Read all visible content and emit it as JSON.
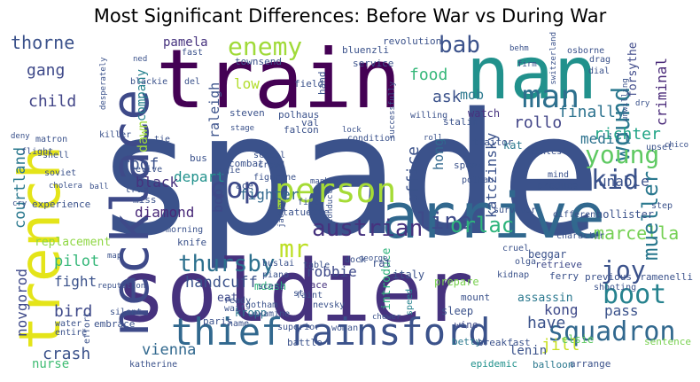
{
  "title": "Most Significant Differences: Before War vs During War",
  "words": [
    {
      "text": "spade",
      "color": "#3b528b"
    },
    {
      "text": "soldier",
      "color": "#46327e"
    },
    {
      "text": "train",
      "color": "#440154"
    },
    {
      "text": "nan",
      "color": "#21918c"
    },
    {
      "text": "trench",
      "color": "#e4e419"
    },
    {
      "text": "necklace",
      "color": "#3e4a89"
    },
    {
      "text": "arrive",
      "color": "#31688e"
    },
    {
      "text": "rainsford",
      "color": "#3b528b"
    },
    {
      "text": "thief",
      "color": "#31688e"
    },
    {
      "text": "person",
      "color": "#a5db36"
    },
    {
      "text": "man",
      "color": "#2d708e"
    },
    {
      "text": "enemy",
      "color": "#a0da39"
    },
    {
      "text": "line",
      "color": "#3e4a89"
    },
    {
      "text": "squadron",
      "color": "#31688e"
    },
    {
      "text": "boot",
      "color": "#26828e"
    },
    {
      "text": "joy",
      "color": "#3b528b"
    },
    {
      "text": "cop",
      "color": "#3e4989"
    },
    {
      "text": "mr",
      "color": "#bddf26"
    },
    {
      "text": "austrian",
      "color": "#46327e"
    },
    {
      "text": "wound",
      "color": "#2a788e"
    },
    {
      "text": "kid",
      "color": "#3b528b"
    },
    {
      "text": "young",
      "color": "#5ec962"
    },
    {
      "text": "orlac",
      "color": "#2fb47c"
    },
    {
      "text": "bab",
      "color": "#3b528b"
    },
    {
      "text": "thursby",
      "color": "#2d708e"
    },
    {
      "text": "marcella",
      "color": "#75d054"
    },
    {
      "text": "mueller",
      "color": "#2a788e"
    },
    {
      "text": "thorne",
      "color": "#3b528b"
    },
    {
      "text": "gang",
      "color": "#3e4989"
    },
    {
      "text": "child",
      "color": "#414487"
    },
    {
      "text": "food",
      "color": "#35b779"
    },
    {
      "text": "ask",
      "color": "#3b528b"
    },
    {
      "text": "rollo",
      "color": "#414487"
    },
    {
      "text": "finally",
      "color": "#2c728e"
    },
    {
      "text": "richter",
      "color": "#20a486"
    },
    {
      "text": "medill",
      "color": "#2c728e"
    },
    {
      "text": "unable",
      "color": "#3b528b"
    },
    {
      "text": "criminal",
      "color": "#482878"
    },
    {
      "text": "forsythe",
      "color": "#3e4989"
    },
    {
      "text": "katczinsky",
      "color": "#3b528b"
    },
    {
      "text": "office",
      "color": "#3b528b"
    },
    {
      "text": "hong",
      "color": "#31688e"
    },
    {
      "text": "mob",
      "color": "#2a788e"
    },
    {
      "text": "watch",
      "color": "#46327e"
    },
    {
      "text": "kat",
      "color": "#2a788e"
    },
    {
      "text": "fighter",
      "color": "#31688e"
    },
    {
      "text": "depart",
      "color": "#21918c"
    },
    {
      "text": "black",
      "color": "#46327e"
    },
    {
      "text": "roof",
      "color": "#3b528b"
    },
    {
      "text": "diamond",
      "color": "#482878"
    },
    {
      "text": "bob",
      "color": "#3e4989"
    },
    {
      "text": "dawn",
      "color": "#9fda3a"
    },
    {
      "text": "courtland",
      "color": "#2a788e"
    },
    {
      "text": "raleigh",
      "color": "#3b528b"
    },
    {
      "text": "company",
      "color": "#26828e"
    },
    {
      "text": "low",
      "color": "#b2dd2d"
    },
    {
      "text": "pamela",
      "color": "#46327e"
    },
    {
      "text": "handcuff",
      "color": "#3b528b"
    },
    {
      "text": "robbie",
      "color": "#3e4989"
    },
    {
      "text": "pilot",
      "color": "#35b779"
    },
    {
      "text": "fight",
      "color": "#3b528b"
    },
    {
      "text": "bird",
      "color": "#3e4989"
    },
    {
      "text": "crash",
      "color": "#3b528b"
    },
    {
      "text": "nurse",
      "color": "#3fbc73"
    },
    {
      "text": "vienna",
      "color": "#31688e"
    },
    {
      "text": "novgorod",
      "color": "#3e4989"
    },
    {
      "text": "replacement",
      "color": "#8fd744"
    },
    {
      "text": "introduce",
      "color": "#2fb47c"
    },
    {
      "text": "have",
      "color": "#3b528b"
    },
    {
      "text": "kong",
      "color": "#3e4989"
    },
    {
      "text": "jill",
      "color": "#c8e020"
    },
    {
      "text": "lenin",
      "color": "#3b528b"
    },
    {
      "text": "pass",
      "color": "#3b528b"
    },
    {
      "text": "assassin",
      "color": "#2a788e"
    },
    {
      "text": "hollister",
      "color": "#3b528b"
    },
    {
      "text": "beggar",
      "color": "#3b528b"
    },
    {
      "text": "retrieve",
      "color": "#3e4989"
    },
    {
      "text": "ramenelli",
      "color": "#3b528b"
    },
    {
      "text": "elsie",
      "color": "#5ec962"
    },
    {
      "text": "sentence",
      "color": "#7ad151"
    },
    {
      "text": "epidemic",
      "color": "#21918c"
    },
    {
      "text": "arrange",
      "color": "#3b528b"
    },
    {
      "text": "balloon",
      "color": "#2a788e"
    },
    {
      "text": "katherine",
      "color": "#3b528b"
    },
    {
      "text": "embrace",
      "color": "#3b528b"
    },
    {
      "text": "kropp",
      "color": "#2a788e"
    },
    {
      "text": "mdash",
      "color": "#2fb47c"
    },
    {
      "text": "eat",
      "color": "#3e4989"
    },
    {
      "text": "paris",
      "color": "#3b528b"
    },
    {
      "text": "race",
      "color": "#46327e"
    },
    {
      "text": "sleep",
      "color": "#3b528b"
    },
    {
      "text": "mount",
      "color": "#3b528b"
    },
    {
      "text": "wine",
      "color": "#3e4989"
    },
    {
      "text": "speed",
      "color": "#26828e"
    },
    {
      "text": "betty",
      "color": "#2a788e"
    },
    {
      "text": "battle",
      "color": "#3b528b"
    },
    {
      "text": "breakfast",
      "color": "#3b528b"
    },
    {
      "text": "woman",
      "color": "#3b528b"
    },
    {
      "text": "superior",
      "color": "#3b528b"
    },
    {
      "text": "italy",
      "color": "#3b528b"
    },
    {
      "text": "prepare",
      "color": "#7ad151"
    },
    {
      "text": "experience",
      "color": "#3b528b"
    },
    {
      "text": "trust",
      "color": "#3b528b"
    },
    {
      "text": "miss",
      "color": "#3b528b"
    },
    {
      "text": "aggie",
      "color": "#3b528b"
    },
    {
      "text": "revive",
      "color": "#3b528b"
    },
    {
      "text": "bus",
      "color": "#3b528b"
    },
    {
      "text": "combat",
      "color": "#3b528b"
    },
    {
      "text": "ace",
      "color": "#3b528b"
    },
    {
      "text": "figurine",
      "color": "#3b528b"
    },
    {
      "text": "school",
      "color": "#3b528b"
    },
    {
      "text": "crowd",
      "color": "#3b528b"
    },
    {
      "text": "manhunt",
      "color": "#3b528b"
    },
    {
      "text": "statuette",
      "color": "#3b528b"
    },
    {
      "text": "fist",
      "color": "#3b528b"
    },
    {
      "text": "jacoby",
      "color": "#3b528b"
    },
    {
      "text": "knife",
      "color": "#3b528b"
    },
    {
      "text": "morning",
      "color": "#3b528b"
    },
    {
      "text": "piano",
      "color": "#3b528b"
    },
    {
      "text": "buslai",
      "color": "#3b528b"
    },
    {
      "text": "scene",
      "color": "#3b528b"
    },
    {
      "text": "table",
      "color": "#3b528b"
    },
    {
      "text": "rat",
      "color": "#3b528b"
    },
    {
      "text": "dock",
      "color": "#3b528b"
    },
    {
      "text": "survivor",
      "color": "#3b528b"
    },
    {
      "text": "different",
      "color": "#3b528b"
    },
    {
      "text": "character",
      "color": "#3b528b"
    },
    {
      "text": "cruel",
      "color": "#3b528b"
    },
    {
      "text": "olga",
      "color": "#3b528b"
    },
    {
      "text": "kidnap",
      "color": "#3b528b"
    },
    {
      "text": "ferry",
      "color": "#3b528b"
    },
    {
      "text": "previous",
      "color": "#3b528b"
    },
    {
      "text": "shooting",
      "color": "#3b528b"
    },
    {
      "text": "speak",
      "color": "#3b528b"
    },
    {
      "text": "polhau",
      "color": "#3b528b"
    },
    {
      "text": "contest",
      "color": "#3b528b"
    },
    {
      "text": "mind",
      "color": "#3b528b"
    },
    {
      "text": "produce",
      "color": "#3b528b"
    },
    {
      "text": "step",
      "color": "#3b528b"
    },
    {
      "text": "upset",
      "color": "#3b528b"
    },
    {
      "text": "chico",
      "color": "#3b528b"
    },
    {
      "text": "traitor",
      "color": "#3b528b"
    },
    {
      "text": "condition",
      "color": "#3b528b"
    },
    {
      "text": "lock",
      "color": "#3b528b"
    },
    {
      "text": "roll",
      "color": "#3b528b"
    },
    {
      "text": "successfully",
      "color": "#3b528b"
    },
    {
      "text": "stalin",
      "color": "#3b528b"
    },
    {
      "text": "willing",
      "color": "#3b528b"
    },
    {
      "text": "service",
      "color": "#3b528b"
    },
    {
      "text": "revolution",
      "color": "#3b528b"
    },
    {
      "text": "bluenzli",
      "color": "#3b528b"
    },
    {
      "text": "townsend",
      "color": "#3b528b"
    },
    {
      "text": "field",
      "color": "#3b528b"
    },
    {
      "text": "val",
      "color": "#3b528b"
    },
    {
      "text": "falcon",
      "color": "#3b528b"
    },
    {
      "text": "polhaus",
      "color": "#3b528b"
    },
    {
      "text": "steven",
      "color": "#3b528b"
    },
    {
      "text": "hand",
      "color": "#3b528b"
    },
    {
      "text": "del",
      "color": "#3b528b"
    },
    {
      "text": "blackie",
      "color": "#3b528b"
    },
    {
      "text": "ned",
      "color": "#3b528b"
    },
    {
      "text": "fast",
      "color": "#3b528b"
    },
    {
      "text": "desperately",
      "color": "#3b528b"
    },
    {
      "text": "switzerland",
      "color": "#3b528b"
    },
    {
      "text": "behm",
      "color": "#3b528b"
    },
    {
      "text": "osborne",
      "color": "#3b528b"
    },
    {
      "text": "drag",
      "color": "#3b528b"
    },
    {
      "text": "dial",
      "color": "#3b528b"
    },
    {
      "text": "firm",
      "color": "#3b528b"
    },
    {
      "text": "unwilling",
      "color": "#3b528b"
    },
    {
      "text": "dry",
      "color": "#3b528b"
    },
    {
      "text": "tie",
      "color": "#3b528b"
    },
    {
      "text": "killer",
      "color": "#3b528b"
    },
    {
      "text": "matron",
      "color": "#3b528b"
    },
    {
      "text": "deny",
      "color": "#3b528b"
    },
    {
      "text": "flight",
      "color": "#3b528b"
    },
    {
      "text": "shell",
      "color": "#3b528b"
    },
    {
      "text": "soviet",
      "color": "#3b528b"
    },
    {
      "text": "cholera",
      "color": "#3b528b"
    },
    {
      "text": "cry",
      "color": "#3b528b"
    },
    {
      "text": "stage",
      "color": "#3b528b"
    },
    {
      "text": "map",
      "color": "#3b528b"
    },
    {
      "text": "reputation",
      "color": "#3b528b"
    },
    {
      "text": "silent",
      "color": "#3b528b"
    },
    {
      "text": "water",
      "color": "#3b528b"
    },
    {
      "text": "entire",
      "color": "#3b528b"
    },
    {
      "text": "effort",
      "color": "#3b528b"
    },
    {
      "text": "wait",
      "color": "#3b528b"
    },
    {
      "text": "ready",
      "color": "#3b528b"
    },
    {
      "text": "gotham",
      "color": "#3b528b"
    },
    {
      "text": "examine",
      "color": "#3b528b"
    },
    {
      "text": "name",
      "color": "#3b528b"
    },
    {
      "text": "nevsky",
      "color": "#3b528b"
    },
    {
      "text": "faint",
      "color": "#3b528b"
    },
    {
      "text": "st",
      "color": "#3b528b"
    },
    {
      "text": "george",
      "color": "#3b528b"
    },
    {
      "text": "conductor",
      "color": "#3b528b"
    },
    {
      "text": "chewer",
      "color": "#3b528b"
    },
    {
      "text": "ball",
      "color": "#3b528b"
    }
  ]
}
